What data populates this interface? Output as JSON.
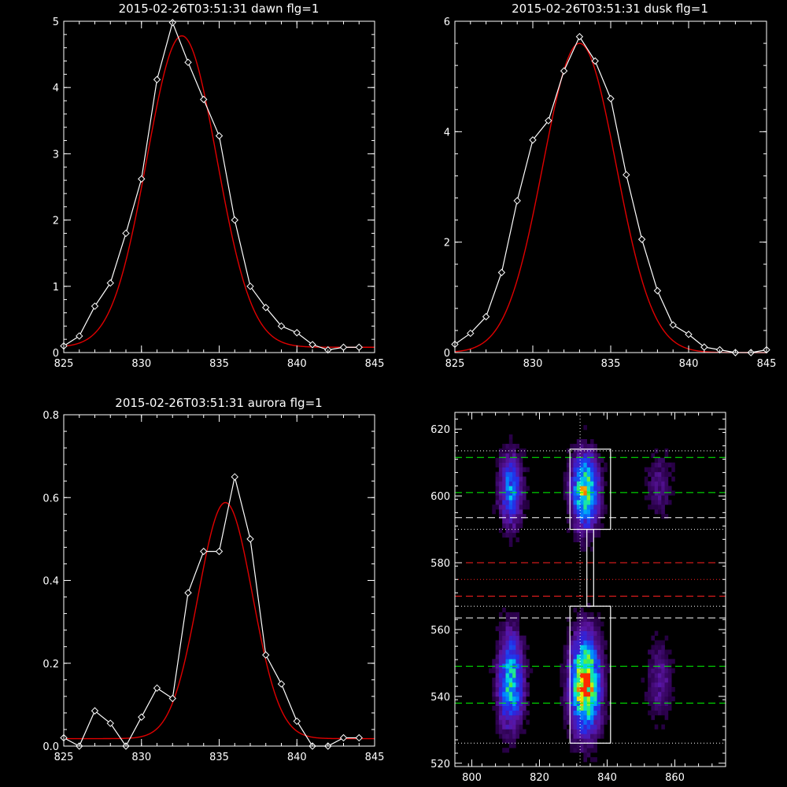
{
  "chart_data": [
    {
      "type": "line",
      "title": "2015-02-26T03:51:31 dawn flg=1",
      "xlim": [
        825,
        845
      ],
      "ylim": [
        0,
        5
      ],
      "x_ticks": [
        825,
        830,
        835,
        840,
        845
      ],
      "y_ticks": [
        0,
        1,
        2,
        3,
        4,
        5
      ],
      "series": [
        {
          "x": [
            825,
            826,
            827,
            828,
            829,
            830,
            831,
            832,
            833,
            834,
            835,
            836,
            837,
            838,
            839,
            840,
            841,
            842,
            843,
            844
          ],
          "y": [
            0.1,
            0.25,
            0.7,
            1.05,
            1.8,
            2.62,
            4.12,
            4.98,
            4.38,
            3.82,
            3.27,
            2.0,
            1.0,
            0.68,
            0.4,
            0.3,
            0.12,
            0.04,
            0.08,
            0.08
          ]
        }
      ],
      "fit": {
        "amp": 4.7,
        "mu": 832.6,
        "sigma": 2.25,
        "base": 0.08
      }
    },
    {
      "type": "line",
      "title": "2015-02-26T03:51:31 dusk flg=1",
      "xlim": [
        825,
        845
      ],
      "ylim": [
        0,
        6
      ],
      "x_ticks": [
        825,
        830,
        835,
        840,
        845
      ],
      "y_ticks": [
        0,
        2,
        4,
        6
      ],
      "series": [
        {
          "x": [
            825,
            826,
            827,
            828,
            829,
            830,
            831,
            832,
            833,
            834,
            835,
            836,
            837,
            838,
            839,
            840,
            841,
            842,
            843,
            844,
            845
          ],
          "y": [
            0.15,
            0.35,
            0.65,
            1.45,
            2.75,
            3.85,
            4.2,
            5.1,
            5.72,
            5.28,
            4.6,
            3.22,
            2.05,
            1.12,
            0.5,
            0.33,
            0.1,
            0.05,
            0.0,
            0.0,
            0.05
          ]
        }
      ],
      "fit": {
        "amp": 5.6,
        "mu": 833.0,
        "sigma": 2.35,
        "base": 0.0
      }
    },
    {
      "type": "line",
      "title": "2015-02-26T03:51:31 aurora flg=1",
      "xlim": [
        825,
        845
      ],
      "ylim": [
        0,
        0.8
      ],
      "x_ticks": [
        825,
        830,
        835,
        840,
        845
      ],
      "y_ticks": [
        0.0,
        0.2,
        0.4,
        0.6,
        0.8
      ],
      "series": [
        {
          "x": [
            825,
            826,
            827,
            828,
            829,
            830,
            831,
            832,
            833,
            834,
            835,
            836,
            837,
            838,
            839,
            840,
            841,
            842,
            843,
            844
          ],
          "y": [
            0.02,
            0.0,
            0.085,
            0.055,
            0.0,
            0.07,
            0.14,
            0.115,
            0.37,
            0.47,
            0.47,
            0.65,
            0.5,
            0.22,
            0.15,
            0.06,
            0.0,
            0.0,
            0.02,
            0.02
          ]
        }
      ],
      "fit": {
        "amp": 0.57,
        "mu": 835.4,
        "sigma": 1.75,
        "base": 0.018
      }
    },
    {
      "type": "heatmap",
      "title": "",
      "xlim": [
        795,
        875
      ],
      "ylim": [
        519,
        625
      ],
      "x_ticks": [
        800,
        820,
        840,
        860
      ],
      "y_ticks": [
        520,
        540,
        560,
        580,
        600,
        620
      ],
      "blobs": [
        {
          "x": 811,
          "y": 601,
          "sx": 2.2,
          "sy": 7,
          "amp": 0.45
        },
        {
          "x": 811,
          "y": 544,
          "sx": 2.4,
          "sy": 9,
          "amp": 0.6
        },
        {
          "x": 833,
          "y": 601,
          "sx": 2.6,
          "sy": 7,
          "amp": 0.75
        },
        {
          "x": 833,
          "y": 543,
          "sx": 2.8,
          "sy": 9,
          "amp": 1.0
        },
        {
          "x": 855,
          "y": 603,
          "sx": 2.5,
          "sy": 6,
          "amp": 0.14
        },
        {
          "x": 855,
          "y": 544,
          "sx": 2.5,
          "sy": 8,
          "amp": 0.16
        }
      ],
      "vline_x": 832,
      "boxes": [
        {
          "x0": 829,
          "x1": 841,
          "y0": 590,
          "y1": 614
        },
        {
          "x0": 829,
          "x1": 841,
          "y0": 526,
          "y1": 567
        },
        {
          "x0": 834,
          "x1": 836,
          "y0": 567,
          "y1": 590
        }
      ],
      "hlines": [
        {
          "y": 611.5,
          "color": "#00ff00",
          "style": "dashed"
        },
        {
          "y": 601,
          "color": "#00ff00",
          "style": "dashed"
        },
        {
          "y": 593.5,
          "color": "#ffffff",
          "style": "dashed"
        },
        {
          "y": 580,
          "color": "#ff2020",
          "style": "dashed"
        },
        {
          "y": 570,
          "color": "#ff2020",
          "style": "dashed"
        },
        {
          "y": 563.5,
          "color": "#ffffff",
          "style": "dashed"
        },
        {
          "y": 549,
          "color": "#00ff00",
          "style": "dashed"
        },
        {
          "y": 538,
          "color": "#00ff00",
          "style": "dashed"
        },
        {
          "y": 613.5,
          "color": "#ffffff",
          "style": "dotted"
        },
        {
          "y": 590,
          "color": "#ffffff",
          "style": "dotted"
        },
        {
          "y": 575,
          "color": "#ff2020",
          "style": "dotted"
        },
        {
          "y": 567,
          "color": "#ffffff",
          "style": "dotted"
        },
        {
          "y": 526,
          "color": "#ffffff",
          "style": "dotted"
        }
      ]
    }
  ]
}
